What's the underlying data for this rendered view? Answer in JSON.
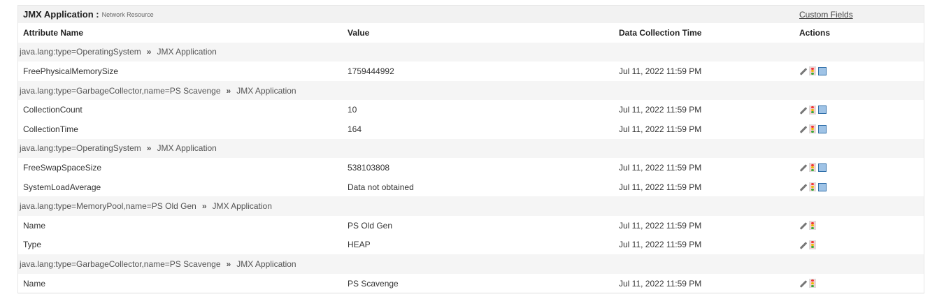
{
  "title": {
    "main": "JMX Application :",
    "sub": "Network Resource",
    "custom_fields": "Custom Fields"
  },
  "columns": [
    "Attribute Name",
    "Value",
    "Data Collection Time",
    "Actions"
  ],
  "separator": "»",
  "rows": [
    {
      "type": "group",
      "mbean": "java.lang:type=OperatingSystem",
      "app": "JMX Application"
    },
    {
      "type": "data",
      "name": "FreePhysicalMemorySize",
      "value": "1759444992",
      "time": "Jul 11, 2022 11:59 PM",
      "graph": true
    },
    {
      "type": "group",
      "mbean": "java.lang:type=GarbageCollector,name=PS Scavenge",
      "app": "JMX Application"
    },
    {
      "type": "data",
      "name": "CollectionCount",
      "value": "10",
      "time": "Jul 11, 2022 11:59 PM",
      "graph": true
    },
    {
      "type": "data",
      "name": "CollectionTime",
      "value": "164",
      "time": "Jul 11, 2022 11:59 PM",
      "graph": true
    },
    {
      "type": "group",
      "mbean": "java.lang:type=OperatingSystem",
      "app": "JMX Application"
    },
    {
      "type": "data",
      "name": "FreeSwapSpaceSize",
      "value": "538103808",
      "time": "Jul 11, 2022 11:59 PM",
      "graph": true
    },
    {
      "type": "data",
      "name": "SystemLoadAverage",
      "value": "Data not obtained",
      "time": "Jul 11, 2022 11:59 PM",
      "graph": true
    },
    {
      "type": "group",
      "mbean": "java.lang:type=MemoryPool,name=PS Old Gen",
      "app": "JMX Application"
    },
    {
      "type": "data",
      "name": "Name",
      "value": "PS Old Gen",
      "time": "Jul 11, 2022 11:59 PM",
      "graph": false
    },
    {
      "type": "data",
      "name": "Type",
      "value": "HEAP",
      "time": "Jul 11, 2022 11:59 PM",
      "graph": false
    },
    {
      "type": "group",
      "mbean": "java.lang:type=GarbageCollector,name=PS Scavenge",
      "app": "JMX Application"
    },
    {
      "type": "data",
      "name": "Name",
      "value": "PS Scavenge",
      "time": "Jul 11, 2022 11:59 PM",
      "graph": false
    }
  ],
  "icons": {
    "edit": "pencil-icon",
    "threshold": "traffic-light-icon",
    "graph": "graph-icon"
  }
}
